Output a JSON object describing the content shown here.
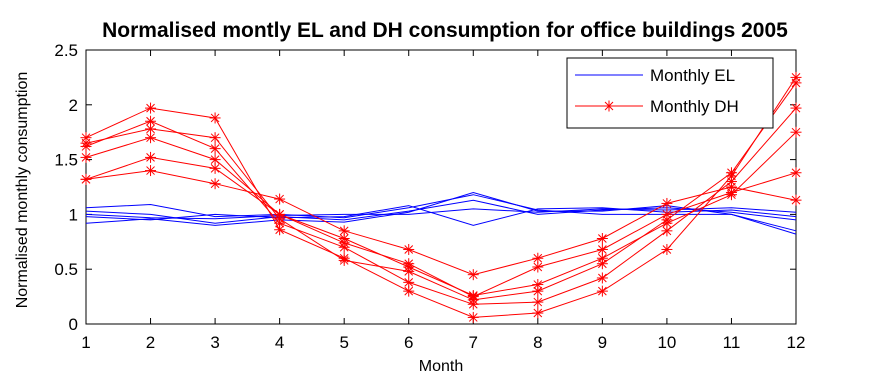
{
  "chart_data": {
    "type": "line",
    "title": "Normalised montly EL and DH consumption for office buildings 2005",
    "xlabel": "Month",
    "ylabel": "Normalised monthly consumption",
    "xlim": [
      1,
      12
    ],
    "ylim": [
      0,
      2.5
    ],
    "x": [
      1,
      2,
      3,
      4,
      5,
      6,
      7,
      8,
      9,
      10,
      11,
      12
    ],
    "xticks": [
      "1",
      "2",
      "3",
      "4",
      "5",
      "6",
      "7",
      "8",
      "9",
      "10",
      "11",
      "12"
    ],
    "yticks": [
      0,
      0.5,
      1,
      1.5,
      2,
      2.5
    ],
    "yticklabels": [
      "0",
      "0.5",
      "1",
      "1.5",
      "2",
      "2.5"
    ],
    "grid": false,
    "legend_position": "top-right",
    "legend": [
      {
        "label": "Monthly EL",
        "color": "#0000ff",
        "marker": "none"
      },
      {
        "label": "Monthly DH",
        "color": "#ff0000",
        "marker": "*"
      }
    ],
    "series": [
      {
        "group": "Monthly EL",
        "color": "#0000ff",
        "marker": "none",
        "values": [
          1.06,
          1.09,
          0.98,
          1.0,
          0.97,
          1.06,
          1.18,
          1.04,
          1.0,
          1.0,
          1.0,
          0.85
        ]
      },
      {
        "group": "Monthly EL",
        "color": "#0000ff",
        "marker": "none",
        "values": [
          1.03,
          1.0,
          0.92,
          0.98,
          0.95,
          1.03,
          1.13,
          1.0,
          1.04,
          1.06,
          1.02,
          0.95
        ]
      },
      {
        "group": "Monthly EL",
        "color": "#0000ff",
        "marker": "none",
        "values": [
          1.0,
          0.97,
          0.96,
          0.99,
          1.0,
          1.0,
          1.05,
          1.02,
          1.05,
          1.04,
          1.06,
          1.02
        ]
      },
      {
        "group": "Monthly EL",
        "color": "#0000ff",
        "marker": "none",
        "values": [
          0.98,
          0.95,
          1.0,
          0.97,
          0.98,
          1.08,
          0.9,
          1.05,
          1.06,
          1.02,
          1.04,
          0.98
        ]
      },
      {
        "group": "Monthly EL",
        "color": "#0000ff",
        "marker": "none",
        "values": [
          0.92,
          0.96,
          0.9,
          0.95,
          0.93,
          1.02,
          1.2,
          1.03,
          1.03,
          1.08,
          1.0,
          0.82
        ]
      },
      {
        "group": "Monthly DH",
        "color": "#ff0000",
        "marker": "*",
        "values": [
          1.32,
          1.4,
          1.28,
          1.14,
          0.85,
          0.68,
          0.45,
          0.6,
          0.78,
          1.1,
          1.25,
          1.13
        ]
      },
      {
        "group": "Monthly DH",
        "color": "#ff0000",
        "marker": "*",
        "values": [
          1.52,
          1.7,
          1.5,
          1.0,
          0.74,
          0.55,
          0.25,
          0.52,
          0.68,
          1.0,
          1.2,
          1.38
        ]
      },
      {
        "group": "Monthly DH",
        "color": "#ff0000",
        "marker": "*",
        "values": [
          1.7,
          1.97,
          1.88,
          0.86,
          0.6,
          0.3,
          0.06,
          0.1,
          0.3,
          0.68,
          1.35,
          2.25
        ]
      },
      {
        "group": "Monthly DH",
        "color": "#ff0000",
        "marker": "*",
        "values": [
          1.62,
          1.85,
          1.6,
          0.92,
          0.7,
          0.38,
          0.18,
          0.2,
          0.42,
          0.85,
          1.3,
          1.97
        ]
      },
      {
        "group": "Monthly DH",
        "color": "#ff0000",
        "marker": "*",
        "values": [
          1.65,
          1.78,
          1.7,
          0.96,
          0.58,
          0.48,
          0.22,
          0.3,
          0.55,
          0.95,
          1.38,
          2.2
        ]
      },
      {
        "group": "Monthly DH",
        "color": "#ff0000",
        "marker": "*",
        "values": [
          1.32,
          1.52,
          1.42,
          1.0,
          0.78,
          0.52,
          0.26,
          0.36,
          0.6,
          0.92,
          1.18,
          1.75
        ]
      }
    ]
  }
}
